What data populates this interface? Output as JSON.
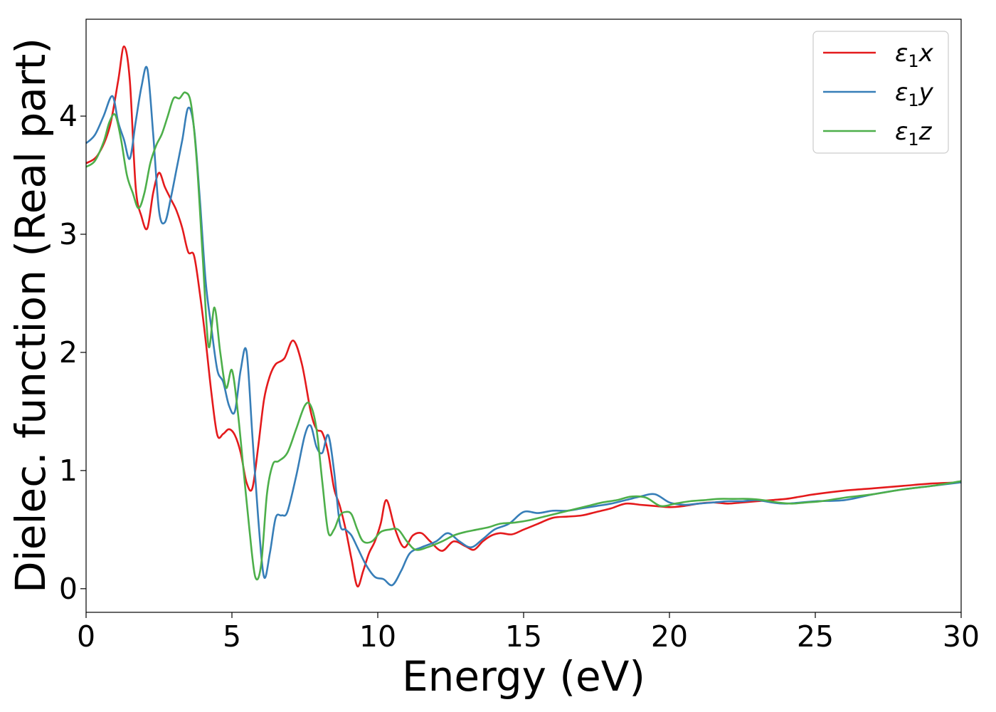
{
  "chart_data": {
    "type": "line",
    "xlabel": "Energy (eV)",
    "ylabel": "Dielec. function (Real part)",
    "xlim": [
      0,
      30
    ],
    "ylim": [
      -0.2,
      4.82
    ],
    "xticks": [
      0,
      5,
      10,
      15,
      20,
      25,
      30
    ],
    "yticks": [
      0,
      1,
      2,
      3,
      4
    ],
    "grid": false,
    "legend_position": "top-right",
    "series": [
      {
        "name": "ε1x",
        "color": "#e41a1c",
        "x": [
          0,
          0.4,
          0.8,
          1.1,
          1.3,
          1.5,
          1.7,
          1.9,
          2.1,
          2.3,
          2.5,
          2.7,
          2.9,
          3.1,
          3.3,
          3.5,
          3.7,
          3.9,
          4.1,
          4.3,
          4.5,
          4.7,
          4.9,
          5.1,
          5.3,
          5.5,
          5.7,
          5.9,
          6.1,
          6.3,
          6.5,
          6.8,
          7.1,
          7.4,
          7.7,
          7.9,
          8.1,
          8.3,
          8.5,
          8.7,
          8.9,
          9.1,
          9.3,
          9.5,
          9.7,
          9.9,
          10.1,
          10.3,
          10.6,
          10.9,
          11.2,
          11.5,
          11.8,
          12.2,
          12.6,
          13.0,
          13.3,
          13.6,
          13.9,
          14.2,
          14.6,
          15.0,
          15.5,
          16.0,
          16.5,
          17.0,
          17.5,
          18.0,
          18.5,
          19.0,
          19.5,
          20.0,
          20.5,
          21.0,
          21.5,
          22.0,
          22.5,
          23.0,
          23.5,
          24.0,
          24.5,
          25.0,
          26.0,
          27.0,
          28.0,
          29.0,
          30.0
        ],
        "y": [
          3.6,
          3.67,
          3.9,
          4.3,
          4.59,
          4.3,
          3.4,
          3.15,
          3.05,
          3.35,
          3.52,
          3.4,
          3.3,
          3.2,
          3.05,
          2.85,
          2.82,
          2.5,
          2.1,
          1.65,
          1.3,
          1.31,
          1.35,
          1.3,
          1.15,
          0.9,
          0.85,
          1.2,
          1.6,
          1.8,
          1.9,
          1.95,
          2.1,
          1.9,
          1.5,
          1.35,
          1.32,
          1.15,
          0.85,
          0.7,
          0.5,
          0.25,
          0.02,
          0.15,
          0.3,
          0.4,
          0.55,
          0.75,
          0.5,
          0.35,
          0.45,
          0.47,
          0.4,
          0.32,
          0.4,
          0.36,
          0.33,
          0.4,
          0.45,
          0.47,
          0.46,
          0.5,
          0.55,
          0.6,
          0.61,
          0.62,
          0.65,
          0.68,
          0.72,
          0.71,
          0.7,
          0.69,
          0.7,
          0.72,
          0.73,
          0.72,
          0.73,
          0.74,
          0.75,
          0.76,
          0.78,
          0.8,
          0.83,
          0.85,
          0.87,
          0.89,
          0.9
        ]
      },
      {
        "name": "ε1y",
        "color": "#377eb8",
        "x": [
          0,
          0.3,
          0.6,
          0.9,
          1.1,
          1.3,
          1.5,
          1.7,
          1.9,
          2.1,
          2.3,
          2.5,
          2.7,
          2.9,
          3.1,
          3.3,
          3.5,
          3.7,
          3.9,
          4.1,
          4.3,
          4.5,
          4.7,
          4.9,
          5.1,
          5.3,
          5.5,
          5.7,
          5.9,
          6.1,
          6.3,
          6.5,
          6.7,
          6.9,
          7.2,
          7.5,
          7.7,
          7.9,
          8.1,
          8.3,
          8.5,
          8.7,
          8.9,
          9.1,
          9.3,
          9.6,
          9.9,
          10.2,
          10.5,
          10.8,
          11.1,
          11.5,
          12.0,
          12.4,
          12.8,
          13.2,
          13.6,
          14.0,
          14.5,
          15.0,
          15.5,
          16.0,
          16.5,
          17.0,
          17.5,
          18.0,
          18.5,
          19.0,
          19.5,
          20.0,
          20.5,
          21.0,
          21.5,
          22.0,
          22.5,
          23.0,
          23.5,
          24.0,
          25.0,
          26.0,
          27.0,
          28.0,
          29.0,
          30.0
        ],
        "y": [
          3.77,
          3.84,
          4.0,
          4.17,
          3.95,
          3.8,
          3.64,
          3.95,
          4.25,
          4.4,
          3.85,
          3.2,
          3.1,
          3.3,
          3.55,
          3.8,
          4.07,
          3.9,
          3.3,
          2.6,
          2.2,
          1.85,
          1.75,
          1.55,
          1.5,
          1.85,
          2.01,
          1.3,
          0.6,
          0.1,
          0.3,
          0.6,
          0.62,
          0.65,
          0.95,
          1.3,
          1.38,
          1.2,
          1.15,
          1.3,
          1.0,
          0.55,
          0.5,
          0.45,
          0.35,
          0.2,
          0.1,
          0.08,
          0.03,
          0.15,
          0.3,
          0.35,
          0.4,
          0.47,
          0.4,
          0.35,
          0.42,
          0.5,
          0.55,
          0.65,
          0.64,
          0.66,
          0.66,
          0.68,
          0.7,
          0.72,
          0.75,
          0.78,
          0.8,
          0.73,
          0.71,
          0.72,
          0.73,
          0.74,
          0.74,
          0.75,
          0.73,
          0.72,
          0.74,
          0.75,
          0.8,
          0.84,
          0.87,
          0.9
        ]
      },
      {
        "name": "ε1z",
        "color": "#4daf4a",
        "x": [
          0,
          0.3,
          0.6,
          0.8,
          1.0,
          1.2,
          1.4,
          1.6,
          1.8,
          2.0,
          2.2,
          2.4,
          2.6,
          2.8,
          3.0,
          3.2,
          3.4,
          3.6,
          3.8,
          4.0,
          4.2,
          4.4,
          4.6,
          4.8,
          5.0,
          5.2,
          5.4,
          5.6,
          5.8,
          6.0,
          6.2,
          6.4,
          6.6,
          6.9,
          7.2,
          7.5,
          7.7,
          7.9,
          8.1,
          8.3,
          8.5,
          8.7,
          8.9,
          9.1,
          9.3,
          9.5,
          9.8,
          10.1,
          10.4,
          10.7,
          11.0,
          11.3,
          11.7,
          12.2,
          12.6,
          13.0,
          13.4,
          13.8,
          14.2,
          14.7,
          15.2,
          15.7,
          16.2,
          16.7,
          17.2,
          17.7,
          18.2,
          18.7,
          19.2,
          19.7,
          20.2,
          20.7,
          21.2,
          21.7,
          22.2,
          22.7,
          23.2,
          23.7,
          24.2,
          24.7,
          25.2,
          26.0,
          27.0,
          28.0,
          29.0,
          30.0
        ],
        "y": [
          3.57,
          3.62,
          3.78,
          3.95,
          4.01,
          3.8,
          3.5,
          3.35,
          3.22,
          3.35,
          3.6,
          3.75,
          3.85,
          4.0,
          4.15,
          4.15,
          4.2,
          4.1,
          3.6,
          2.8,
          2.05,
          2.38,
          2.0,
          1.7,
          1.85,
          1.5,
          1.0,
          0.5,
          0.1,
          0.2,
          0.8,
          1.05,
          1.08,
          1.15,
          1.35,
          1.55,
          1.55,
          1.35,
          0.9,
          0.48,
          0.5,
          0.62,
          0.65,
          0.63,
          0.5,
          0.4,
          0.4,
          0.48,
          0.5,
          0.5,
          0.4,
          0.33,
          0.35,
          0.4,
          0.45,
          0.48,
          0.5,
          0.52,
          0.55,
          0.56,
          0.58,
          0.61,
          0.64,
          0.67,
          0.7,
          0.73,
          0.75,
          0.78,
          0.77,
          0.7,
          0.72,
          0.74,
          0.75,
          0.76,
          0.76,
          0.76,
          0.75,
          0.73,
          0.72,
          0.73,
          0.74,
          0.77,
          0.8,
          0.84,
          0.87,
          0.91
        ]
      }
    ]
  }
}
